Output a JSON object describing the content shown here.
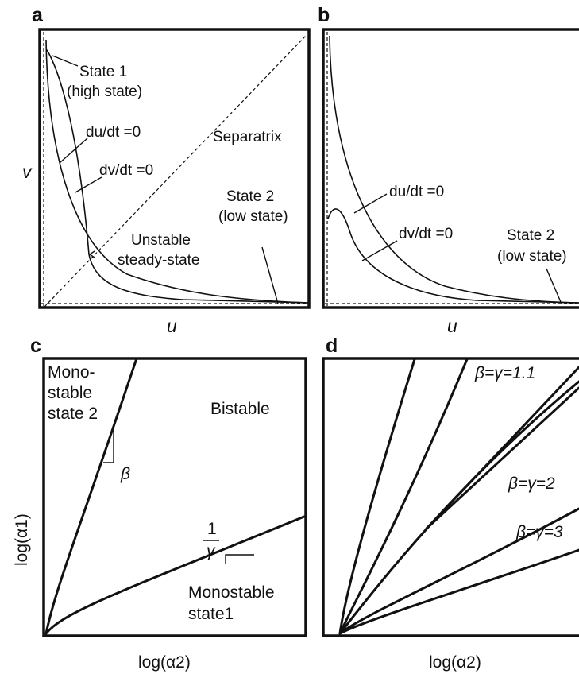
{
  "chart_data": [
    {
      "panel": "a",
      "type": "line",
      "xlabel": "u",
      "ylabel": "v",
      "series": [
        {
          "name": "du/dt =0"
        },
        {
          "name": "dv/dt =0"
        },
        {
          "name": "Separatrix"
        }
      ],
      "annotations": [
        {
          "label": "State 1",
          "sublabel": "(high state)"
        },
        {
          "label": "du/dt =0"
        },
        {
          "label": "dv/dt =0"
        },
        {
          "label": "Separatrix"
        },
        {
          "label": "State 2",
          "sublabel": "(low state)"
        },
        {
          "label": "Unstable",
          "sublabel": "steady-state"
        }
      ]
    },
    {
      "panel": "b",
      "type": "line",
      "xlabel": "u",
      "ylabel": "",
      "series": [
        {
          "name": "du/dt =0"
        },
        {
          "name": "dv/dt =0"
        }
      ],
      "annotations": [
        {
          "label": "du/dt =0"
        },
        {
          "label": "dv/dt =0"
        },
        {
          "label": "State 2",
          "sublabel": "(low state)"
        }
      ]
    },
    {
      "panel": "c",
      "type": "line",
      "xlabel": "log(α2)",
      "ylabel": "log(α1)",
      "regions": [
        {
          "lines": [
            "Mono-",
            "stable",
            "state 2"
          ]
        },
        {
          "lines": [
            "Bistable"
          ]
        },
        {
          "lines": [
            "Monostable",
            "state1"
          ]
        }
      ],
      "slopes": [
        {
          "label": "β"
        },
        {
          "numerator": "1",
          "denominator": "γ"
        }
      ]
    },
    {
      "panel": "d",
      "type": "line",
      "xlabel": "log(α2)",
      "ylabel": "",
      "series": [
        {
          "name": "β=γ=1.1",
          "value": 1.1
        },
        {
          "name": "β=γ=2",
          "value": 2
        },
        {
          "name": "β=γ=3",
          "value": 3
        }
      ]
    }
  ]
}
